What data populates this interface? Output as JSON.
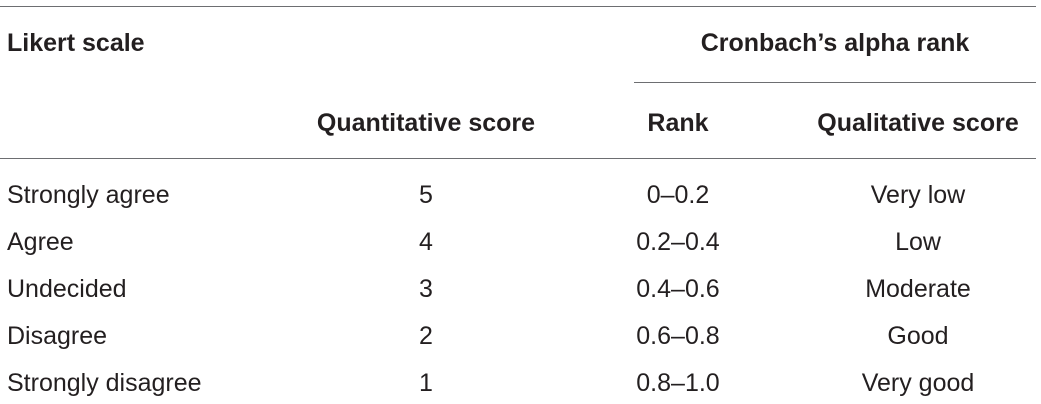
{
  "table": {
    "header": {
      "likert_scale": "Likert scale",
      "cronbach_group": "Cronbach’s alpha rank",
      "quantitative_score": "Quantitative score",
      "rank": "Rank",
      "qualitative_score": "Qualitative score"
    },
    "rows": [
      {
        "likert": "Strongly agree",
        "quantitative": "5",
        "rank": "0–0.2",
        "qualitative": "Very low"
      },
      {
        "likert": "Agree",
        "quantitative": "4",
        "rank": "0.2–0.4",
        "qualitative": "Low"
      },
      {
        "likert": "Undecided",
        "quantitative": "3",
        "rank": "0.4–0.6",
        "qualitative": "Moderate"
      },
      {
        "likert": "Disagree",
        "quantitative": "2",
        "rank": "0.6–0.8",
        "qualitative": "Good"
      },
      {
        "likert": "Strongly disagree",
        "quantitative": "1",
        "rank": "0.8–1.0",
        "qualitative": "Very good"
      }
    ]
  }
}
